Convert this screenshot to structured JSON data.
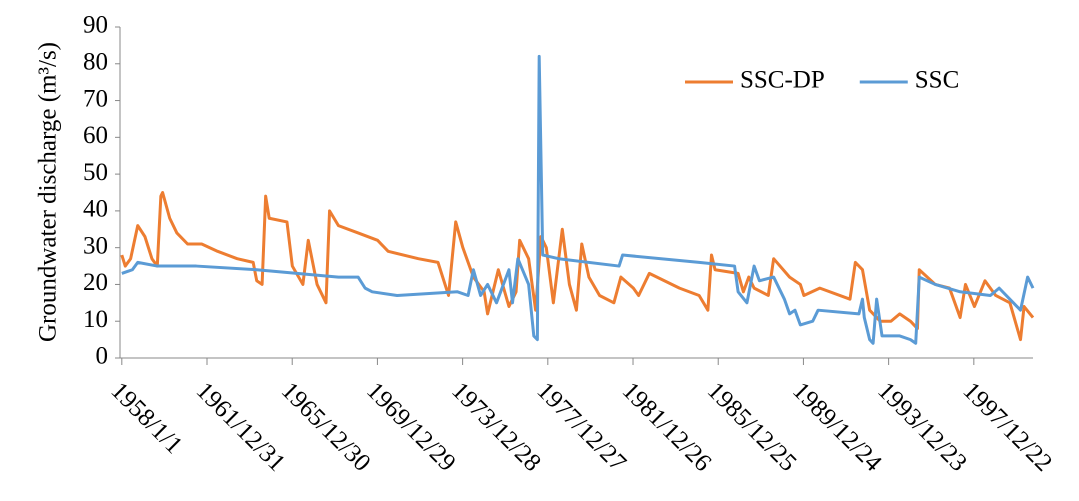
{
  "chart_data": {
    "type": "line",
    "y_label": "Groundwater  discharge  (m³/s)",
    "xlim": [
      "1957/12/1",
      "2000/10/1"
    ],
    "xticks": [
      "1958/1/1",
      "1961/12/31",
      "1965/12/30",
      "1969/12/29",
      "1973/12/28",
      "1977/12/27",
      "1981/12/26",
      "1985/12/25",
      "1989/12/24",
      "1993/12/23",
      "1997/12/22"
    ],
    "ylim": [
      0,
      90
    ],
    "yticks": [
      0,
      10,
      20,
      30,
      40,
      50,
      60,
      70,
      80,
      90
    ],
    "legend": "upper right",
    "series": [
      {
        "name": "SSC-DP",
        "color": "#ed7d31",
        "x": [
          "1958/1/1",
          "1958/3/1",
          "1958/6/1",
          "1958/10/1",
          "1959/2/1",
          "1959/6/1",
          "1959/9/1",
          "1959/11/1",
          "1959/12/1",
          "1960/4/1",
          "1960/8/1",
          "1961/2/1",
          "1961/10/1",
          "1962/7/1",
          "1963/6/1",
          "1964/3/1",
          "1964/5/1",
          "1964/8/1",
          "1964/10/1",
          "1964/12/1",
          "1965/10/1",
          "1966/1/1",
          "1966/7/1",
          "1966/10/1",
          "1967/3/1",
          "1967/8/1",
          "1967/10/1",
          "1968/3/1",
          "1969/2/1",
          "1970/1/1",
          "1970/7/1",
          "1971/12/1",
          "1972/11/1",
          "1973/5/1",
          "1973/9/1",
          "1974/1/1",
          "1974/7/1",
          "1975/1/1",
          "1975/3/1",
          "1975/9/1",
          "1976/3/1",
          "1976/7/1",
          "1976/9/1",
          "1977/2/1",
          "1977/6/1",
          "1977/9/1",
          "1977/12/1",
          "1978/4/1",
          "1978/9/1",
          "1979/1/1",
          "1979/5/1",
          "1979/8/1",
          "1979/12/1",
          "1980/6/1",
          "1981/2/1",
          "1981/6/1",
          "1982/1/1",
          "1982/4/1",
          "1982/10/1",
          "1984/3/1",
          "1985/2/1",
          "1985/7/1",
          "1985/9/1",
          "1985/11/1",
          "1986/12/1",
          "1987/3/1",
          "1987/6/1",
          "1987/9/1",
          "1988/5/1",
          "1988/8/1",
          "1989/5/1",
          "1989/11/1",
          "1990/1/1",
          "1990/10/1",
          "1992/3/1",
          "1992/6/1",
          "1992/10/1",
          "1993/2/1",
          "1993/8/1",
          "1994/2/1",
          "1994/7/1",
          "1995/1/1",
          "1995/5/1",
          "1995/6/1",
          "1996/3/1",
          "1996/11/1",
          "1997/5/1",
          "1997/8/1",
          "1998/1/1",
          "1998/7/1",
          "1999/1/1",
          "1999/9/1",
          "2000/3/1",
          "2000/5/1",
          "2000/10/1"
        ],
        "values": [
          28,
          25,
          27,
          36,
          33,
          27,
          25,
          44,
          45,
          38,
          34,
          31,
          31,
          29,
          27,
          26,
          21,
          20,
          44,
          38,
          37,
          25,
          20,
          32,
          20,
          15,
          40,
          36,
          34,
          32,
          29,
          27,
          26,
          17,
          37,
          30,
          22,
          18,
          12,
          24,
          14,
          18,
          32,
          27,
          13,
          33,
          30,
          15,
          35,
          20,
          13,
          31,
          22,
          17,
          15,
          22,
          19,
          17,
          23,
          19,
          17,
          13,
          28,
          24,
          23,
          18,
          22,
          19,
          17,
          27,
          22,
          20,
          17,
          19,
          16,
          26,
          24,
          13,
          10,
          10,
          12,
          10,
          8,
          24,
          20,
          19,
          11,
          20,
          14,
          21,
          17,
          15,
          5,
          14,
          11
        ]
      },
      {
        "name": "SSC",
        "color": "#5b9bd5",
        "x": [
          "1958/1/1",
          "1958/7/1",
          "1958/10/1",
          "1959/9/1",
          "1961/7/1",
          "1964/5/1",
          "1968/3/1",
          "1969/2/1",
          "1969/6/1",
          "1969/10/1",
          "1970/12/1",
          "1973/10/1",
          "1974/4/1",
          "1974/7/1",
          "1974/11/1",
          "1975/3/1",
          "1975/8/1",
          "1976/3/1",
          "1976/5/1",
          "1976/8/1",
          "1977/2/1",
          "1977/5/1",
          "1977/7/1",
          "1977/8/1",
          "1977/10/1",
          "1978/7/1",
          "1981/5/1",
          "1981/7/1",
          "1985/2/1",
          "1986/10/1",
          "1986/12/1",
          "1987/5/1",
          "1987/9/1",
          "1987/12/1",
          "1988/8/1",
          "1989/2/1",
          "1989/5/1",
          "1989/8/1",
          "1989/11/1",
          "1990/6/1",
          "1990/9/1",
          "1992/8/1",
          "1992/10/1",
          "1992/11/1",
          "1993/2/1",
          "1993/4/1",
          "1993/6/1",
          "1993/9/1",
          "1994/7/1",
          "1995/1/1",
          "1995/4/1",
          "1995/6/1",
          "1996/3/1",
          "1997/5/1",
          "1998/10/1",
          "1999/3/1",
          "2000/3/1",
          "2000/7/1",
          "2000/10/1"
        ],
        "values": [
          23,
          24,
          26,
          25,
          25,
          24,
          22,
          22,
          19,
          18,
          17,
          18,
          17,
          24,
          17,
          20,
          15,
          24,
          15,
          27,
          20,
          6,
          5,
          82,
          28,
          27,
          25,
          28,
          26,
          25,
          18,
          15,
          25,
          21,
          22,
          16,
          12,
          13,
          9,
          10,
          13,
          12,
          16,
          11,
          5,
          4,
          16,
          6,
          6,
          5,
          4,
          22,
          20,
          18,
          17,
          19,
          13,
          22,
          19
        ]
      }
    ]
  }
}
